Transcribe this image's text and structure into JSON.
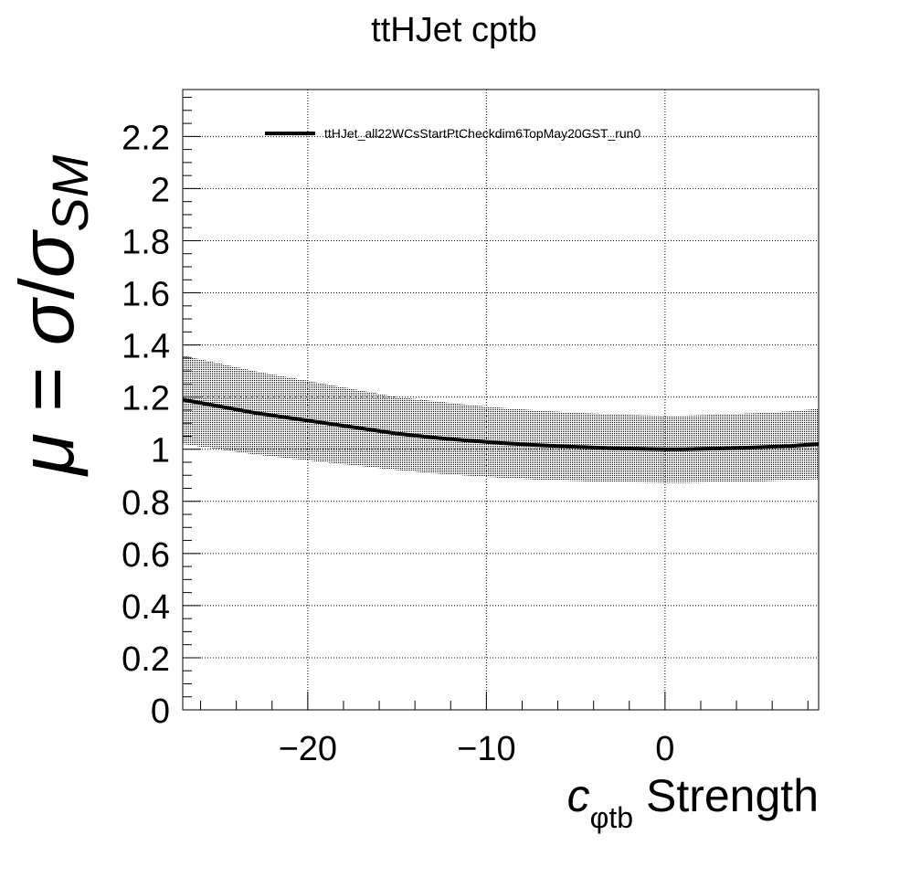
{
  "chart_data": {
    "type": "line",
    "title": "ttHJet cptb",
    "xlabel": {
      "main": "c",
      "sub": "φtb",
      "rest": " Strength"
    },
    "ylabel": {
      "mu": "μ",
      "equals": " = ",
      "sigma": "σ",
      "slash": "/",
      "sigma2": "σ",
      "sub": "SM"
    },
    "xlim": [
      -27,
      8.6
    ],
    "ylim": [
      0,
      2.38
    ],
    "x_ticks": [
      -20,
      -10,
      0
    ],
    "x_tick_labels": [
      "−20",
      "−10",
      "0"
    ],
    "y_ticks": [
      0,
      0.2,
      0.4,
      0.6,
      0.8,
      1,
      1.2,
      1.4,
      1.6,
      1.8,
      2,
      2.2
    ],
    "y_tick_labels": [
      "0",
      "0.2",
      "0.4",
      "0.6",
      "0.8",
      "1",
      "1.2",
      "1.4",
      "1.6",
      "1.8",
      "2",
      "2.2"
    ],
    "grid": true,
    "legend_position": "top",
    "series": [
      {
        "name": "ttHJet_all22WCsStartPtCheckdim6TopMay20GST_run0",
        "color": "#000000",
        "x": [
          -27,
          -25,
          -23,
          -21,
          -19,
          -17,
          -15,
          -13,
          -11,
          -9,
          -7,
          -5,
          -3,
          -1,
          0,
          1,
          3,
          5,
          7,
          8.6
        ],
        "y": [
          1.19,
          1.165,
          1.14,
          1.12,
          1.1,
          1.08,
          1.06,
          1.045,
          1.033,
          1.023,
          1.015,
          1.009,
          1.004,
          1.001,
          1.0,
          1.0,
          1.003,
          1.007,
          1.012,
          1.02
        ],
        "y_low": [
          1.02,
          1.0,
          0.98,
          0.965,
          0.95,
          0.935,
          0.92,
          0.908,
          0.898,
          0.89,
          0.883,
          0.878,
          0.874,
          0.872,
          0.871,
          0.871,
          0.873,
          0.876,
          0.88,
          0.885
        ],
        "y_high": [
          1.36,
          1.33,
          1.3,
          1.275,
          1.25,
          1.225,
          1.2,
          1.185,
          1.17,
          1.158,
          1.148,
          1.14,
          1.134,
          1.13,
          1.129,
          1.129,
          1.133,
          1.138,
          1.145,
          1.155
        ]
      }
    ]
  }
}
